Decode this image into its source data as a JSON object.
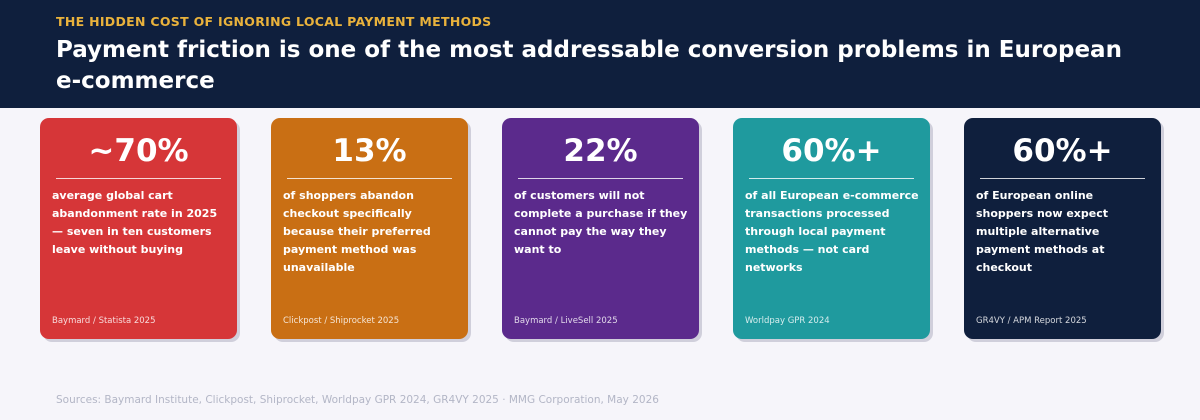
{
  "header": {
    "eyebrow": "THE HIDDEN COST OF IGNORING LOCAL PAYMENT METHODS",
    "headline": "Payment friction is one of the most addressable conversion problems in European e-commerce"
  },
  "cards": [
    {
      "stat": "~70%",
      "description": "average global cart abandonment rate in 2025 — seven in ten customers leave without buying",
      "source": "Baymard / Statista 2025",
      "color": "#d63638"
    },
    {
      "stat": "13%",
      "description": "of shoppers abandon checkout specifically because their preferred payment method was unavailable",
      "source": "Clickpost / Shiprocket 2025",
      "color": "#c96f14"
    },
    {
      "stat": "22%",
      "description": "of customers will not complete a purchase if they cannot pay the way they want to",
      "source": "Baymard / LiveSell 2025",
      "color": "#5b2a8c"
    },
    {
      "stat": "60%+",
      "description": "of all European e-commerce transactions processed through local payment methods — not card networks",
      "source": "Worldpay GPR 2024",
      "color": "#1f9a9e"
    },
    {
      "stat": "60%+",
      "description": "of European online shoppers now expect multiple alternative payment methods at checkout",
      "source": "GR4VY / APM Report 2025",
      "color": "#0f1f3d"
    }
  ],
  "footer": {
    "text": "Sources: Baymard Institute, Clickpost, Shiprocket, Worldpay GPR 2024, GR4VY 2025  ·  MMG Corporation, May 2026"
  },
  "colors": {
    "header_bg": "#0f1f3d",
    "eyebrow": "#e9b23c",
    "page_bg": "#f6f5fa"
  }
}
